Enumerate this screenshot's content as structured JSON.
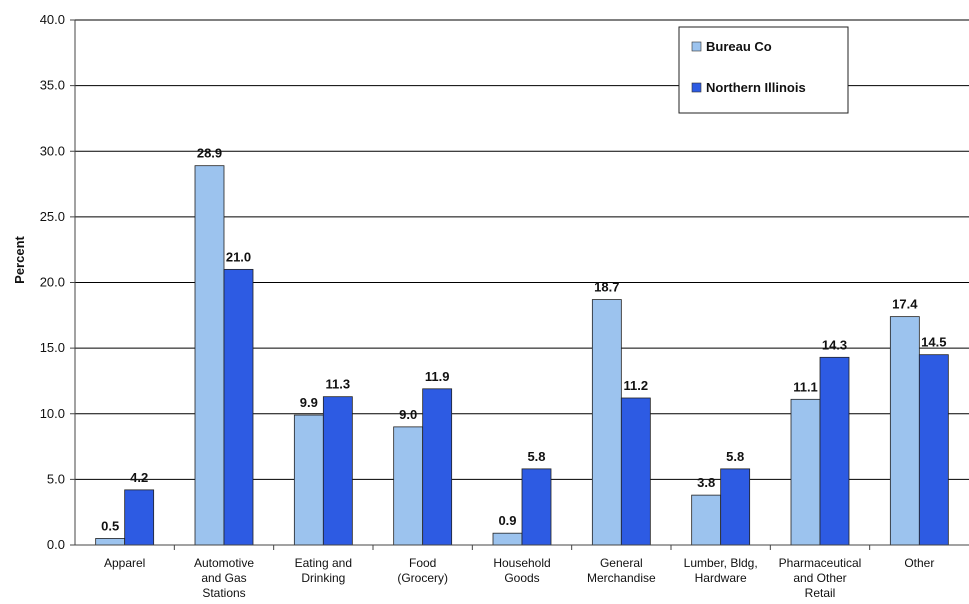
{
  "chart_data": {
    "type": "bar",
    "title": "",
    "xlabel": "",
    "ylabel": "Percent",
    "ylim": [
      0,
      40
    ],
    "yticks": [
      "0.0",
      "5.0",
      "10.0",
      "15.0",
      "20.0",
      "25.0",
      "30.0",
      "35.0",
      "40.0"
    ],
    "grid": true,
    "legend_position": "top-right",
    "categories": [
      [
        "Apparel"
      ],
      [
        "Automotive",
        "and Gas",
        "Stations"
      ],
      [
        "Eating and",
        "Drinking"
      ],
      [
        "Food",
        "(Grocery)"
      ],
      [
        "Household",
        "Goods"
      ],
      [
        "General",
        "Merchandise"
      ],
      [
        "Lumber, Bldg,",
        "Hardware"
      ],
      [
        "Pharmaceutical",
        "and Other",
        "Retail"
      ],
      [
        "Other"
      ]
    ],
    "series": [
      {
        "name": "Bureau Co",
        "color": "#9CC3EE",
        "values": [
          0.5,
          28.9,
          9.9,
          9.0,
          0.9,
          18.7,
          3.8,
          11.1,
          17.4
        ],
        "labels": [
          "0.5",
          "28.9",
          "9.9",
          "9.0",
          "0.9",
          "18.7",
          "3.8",
          "11.1",
          "17.4"
        ]
      },
      {
        "name": "Northern Illinois",
        "color": "#2D5BE3",
        "values": [
          4.2,
          21.0,
          11.3,
          11.9,
          5.8,
          11.2,
          5.8,
          14.3,
          14.5
        ],
        "labels": [
          "4.2",
          "21.0",
          "11.3",
          "11.9",
          "5.8",
          "11.2",
          "5.8",
          "14.3",
          "14.5"
        ]
      }
    ]
  }
}
